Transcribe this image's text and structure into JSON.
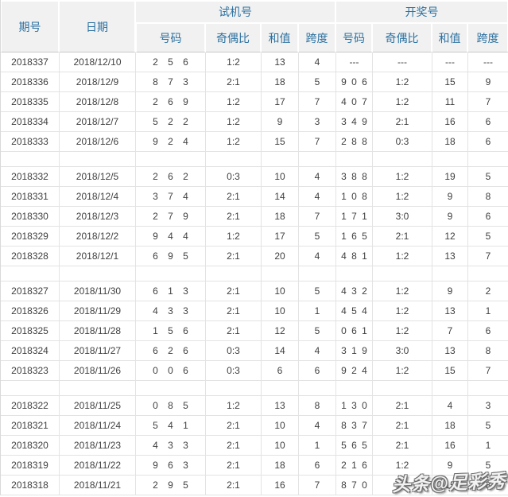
{
  "colors": {
    "header_text": "#2b71a1",
    "header_bg": "#f1f1f1",
    "body_text": "#3f3f3f",
    "grid_line": "#e3e3e3"
  },
  "table": {
    "headers": {
      "period": "期号",
      "date": "日期",
      "test_group": "试机号",
      "draw_group": "开奖号",
      "sub": [
        "号码",
        "奇偶比",
        "和值",
        "跨度"
      ]
    },
    "row_groups": [
      [
        {
          "period": "2018337",
          "date": "2018/12/10",
          "test": [
            "2 5 6",
            "1:2",
            "13",
            "4"
          ],
          "draw": [
            "---",
            "---",
            "---",
            "---"
          ]
        },
        {
          "period": "2018336",
          "date": "2018/12/9",
          "test": [
            "8 7 3",
            "2:1",
            "18",
            "5"
          ],
          "draw": [
            "9 0 6",
            "1:2",
            "15",
            "9"
          ]
        },
        {
          "period": "2018335",
          "date": "2018/12/8",
          "test": [
            "2 6 9",
            "1:2",
            "17",
            "7"
          ],
          "draw": [
            "4 0 7",
            "1:2",
            "11",
            "7"
          ]
        },
        {
          "period": "2018334",
          "date": "2018/12/7",
          "test": [
            "5 2 2",
            "1:2",
            "9",
            "3"
          ],
          "draw": [
            "3 4 9",
            "2:1",
            "16",
            "6"
          ]
        },
        {
          "period": "2018333",
          "date": "2018/12/6",
          "test": [
            "9 2 4",
            "1:2",
            "15",
            "7"
          ],
          "draw": [
            "2 8 8",
            "0:3",
            "18",
            "6"
          ]
        }
      ],
      [
        {
          "period": "2018332",
          "date": "2018/12/5",
          "test": [
            "2 6 2",
            "0:3",
            "10",
            "4"
          ],
          "draw": [
            "3 8 8",
            "1:2",
            "19",
            "5"
          ]
        },
        {
          "period": "2018331",
          "date": "2018/12/4",
          "test": [
            "3 7 4",
            "2:1",
            "14",
            "4"
          ],
          "draw": [
            "1 0 8",
            "1:2",
            "9",
            "8"
          ]
        },
        {
          "period": "2018330",
          "date": "2018/12/3",
          "test": [
            "2 7 9",
            "2:1",
            "18",
            "7"
          ],
          "draw": [
            "1 7 1",
            "3:0",
            "9",
            "6"
          ]
        },
        {
          "period": "2018329",
          "date": "2018/12/2",
          "test": [
            "9 4 4",
            "1:2",
            "17",
            "5"
          ],
          "draw": [
            "1 6 5",
            "2:1",
            "12",
            "5"
          ]
        },
        {
          "period": "2018328",
          "date": "2018/12/1",
          "test": [
            "6 9 5",
            "2:1",
            "20",
            "4"
          ],
          "draw": [
            "4 8 1",
            "1:2",
            "13",
            "7"
          ]
        }
      ],
      [
        {
          "period": "2018327",
          "date": "2018/11/30",
          "test": [
            "6 1 3",
            "2:1",
            "10",
            "5"
          ],
          "draw": [
            "4 3 2",
            "1:2",
            "9",
            "2"
          ]
        },
        {
          "period": "2018326",
          "date": "2018/11/29",
          "test": [
            "4 3 3",
            "2:1",
            "10",
            "1"
          ],
          "draw": [
            "4 5 4",
            "1:2",
            "13",
            "1"
          ]
        },
        {
          "period": "2018325",
          "date": "2018/11/28",
          "test": [
            "1 5 6",
            "2:1",
            "12",
            "5"
          ],
          "draw": [
            "0 6 1",
            "1:2",
            "7",
            "6"
          ]
        },
        {
          "period": "2018324",
          "date": "2018/11/27",
          "test": [
            "6 2 6",
            "0:3",
            "14",
            "4"
          ],
          "draw": [
            "3 1 9",
            "3:0",
            "13",
            "8"
          ]
        },
        {
          "period": "2018323",
          "date": "2018/11/26",
          "test": [
            "0 0 6",
            "0:3",
            "6",
            "6"
          ],
          "draw": [
            "9 2 4",
            "1:2",
            "15",
            "7"
          ]
        }
      ],
      [
        {
          "period": "2018322",
          "date": "2018/11/25",
          "test": [
            "0 8 5",
            "1:2",
            "13",
            "8"
          ],
          "draw": [
            "1 3 0",
            "2:1",
            "4",
            "3"
          ]
        },
        {
          "period": "2018321",
          "date": "2018/11/24",
          "test": [
            "5 4 1",
            "2:1",
            "10",
            "4"
          ],
          "draw": [
            "8 3 7",
            "2:1",
            "18",
            "5"
          ]
        },
        {
          "period": "2018320",
          "date": "2018/11/23",
          "test": [
            "4 3 3",
            "2:1",
            "10",
            "1"
          ],
          "draw": [
            "5 6 5",
            "2:1",
            "16",
            "1"
          ]
        },
        {
          "period": "2018319",
          "date": "2018/11/22",
          "test": [
            "9 6 3",
            "2:1",
            "18",
            "6"
          ],
          "draw": [
            "2 1 6",
            "1:2",
            "9",
            "5"
          ]
        },
        {
          "period": "2018318",
          "date": "2018/11/21",
          "test": [
            "2 9 5",
            "2:1",
            "16",
            "7"
          ],
          "draw": [
            "8 7 0",
            "1:2",
            "15",
            "8"
          ]
        }
      ]
    ]
  },
  "watermark": {
    "text": "头条@足彩秀"
  }
}
